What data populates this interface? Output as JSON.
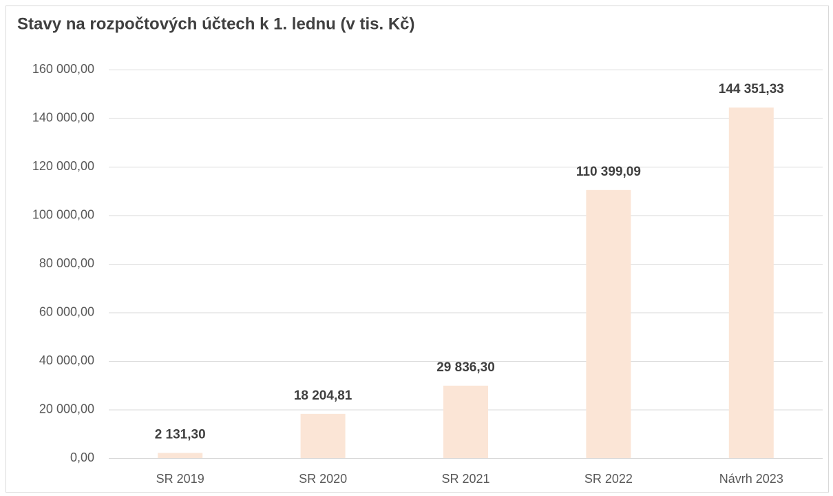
{
  "chart_data": {
    "type": "bar",
    "title": "Stavy na rozpočtových účtech k 1. lednu (v tis. Kč)",
    "categories": [
      "SR 2019",
      "SR 2020",
      "SR 2021",
      "SR 2022",
      "Návrh 2023"
    ],
    "values": [
      2131.3,
      18204.81,
      29836.3,
      110399.09,
      144351.33
    ],
    "value_labels": [
      "2 131,30",
      "18 204,81",
      "29 836,30",
      "110 399,09",
      "144 351,33"
    ],
    "color": "#fbe5d6",
    "ylim": [
      0,
      160000
    ],
    "yticks": [
      {
        "value": 0,
        "label": "0,00"
      },
      {
        "value": 20000,
        "label": "20 000,00"
      },
      {
        "value": 40000,
        "label": "40 000,00"
      },
      {
        "value": 60000,
        "label": "60 000,00"
      },
      {
        "value": 80000,
        "label": "80 000,00"
      },
      {
        "value": 100000,
        "label": "100 000,00"
      },
      {
        "value": 120000,
        "label": "120 000,00"
      },
      {
        "value": 140000,
        "label": "140 000,00"
      },
      {
        "value": 160000,
        "label": "160 000,00"
      }
    ],
    "grid": true
  }
}
